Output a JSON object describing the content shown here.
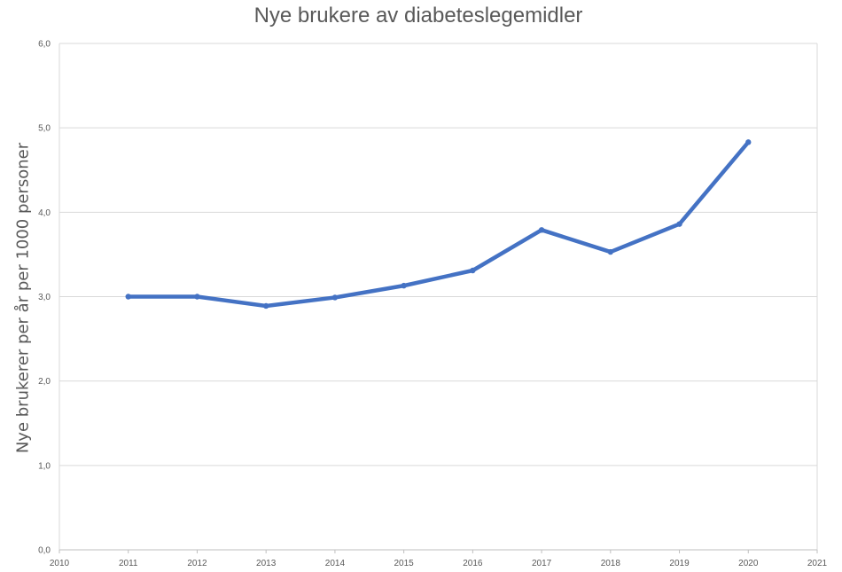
{
  "chart_data": {
    "type": "line",
    "title": "Nye brukere av diabeteslegemidler",
    "xlabel": "",
    "ylabel": "Nye brukerer per år per 1000 personer",
    "xlim": [
      2010,
      2021
    ],
    "ylim": [
      0,
      6
    ],
    "x_ticks": [
      "2010",
      "2011",
      "2012",
      "2013",
      "2014",
      "2015",
      "2016",
      "2017",
      "2018",
      "2019",
      "2020",
      "2021"
    ],
    "y_ticks": [
      "0,0",
      "1,0",
      "2,0",
      "3,0",
      "4,0",
      "5,0",
      "6,0"
    ],
    "grid": true,
    "legend": "none",
    "series": [
      {
        "color": "#4472C4",
        "x": [
          2011,
          2012,
          2013,
          2014,
          2015,
          2016,
          2017,
          2018,
          2019,
          2020
        ],
        "values": [
          3.0,
          3.0,
          2.89,
          2.99,
          3.13,
          3.31,
          3.79,
          3.53,
          3.86,
          4.83
        ]
      }
    ]
  }
}
